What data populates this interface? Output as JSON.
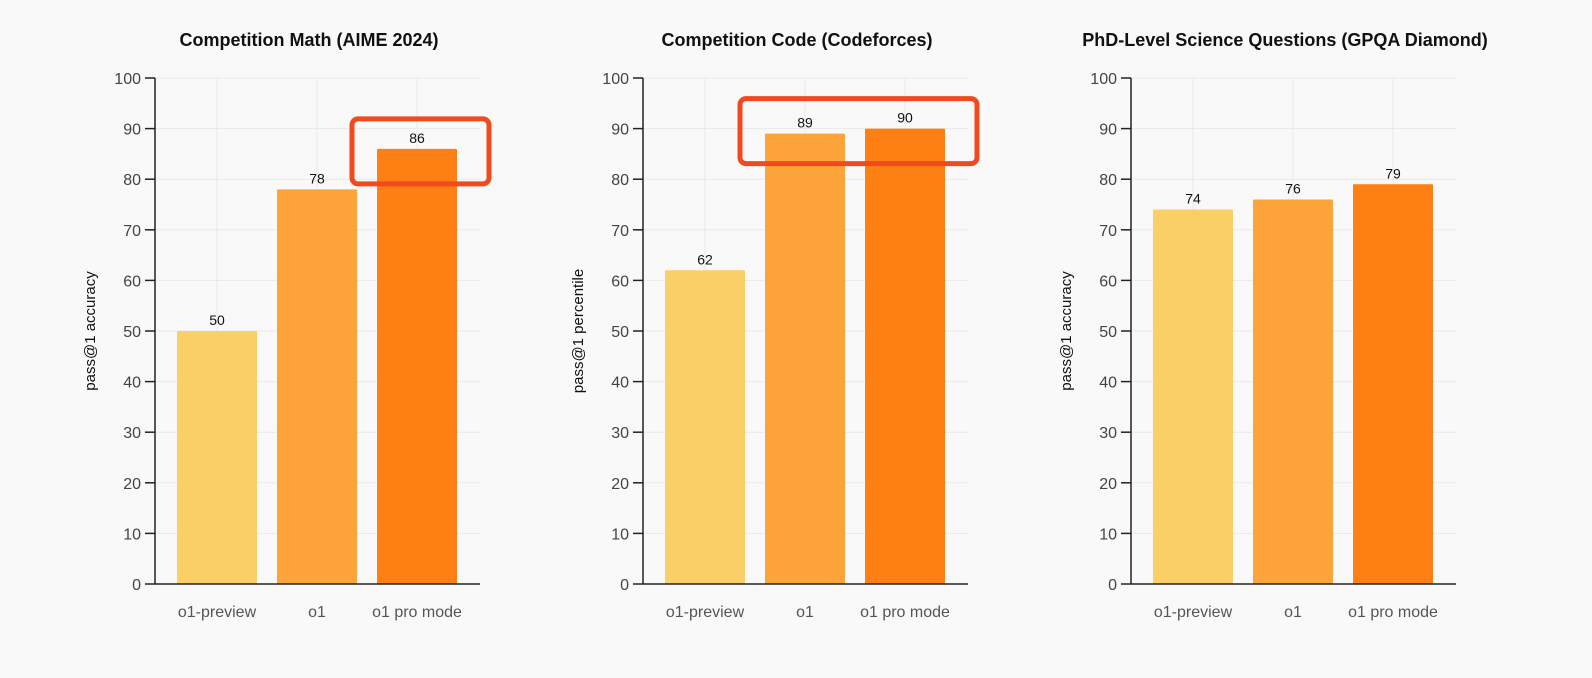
{
  "colors": {
    "background": "#f9f9f9",
    "grid": "#e9e9e9",
    "axis": "#222222",
    "highlight": "#f04a1e",
    "bars": [
      "#fbcf68",
      "#fca43a",
      "#fe7f13"
    ]
  },
  "chart_data": [
    {
      "type": "bar",
      "title": "Competition Math (AIME 2024)",
      "ylabel": "pass@1 accuracy",
      "xlabel": "",
      "categories": [
        "o1-preview",
        "o1",
        "o1 pro mode"
      ],
      "values": [
        50,
        78,
        86
      ],
      "ylim": [
        0,
        100
      ],
      "yticks": [
        0,
        10,
        20,
        30,
        40,
        50,
        60,
        70,
        80,
        90,
        100
      ],
      "grid": true,
      "highlighted": [
        "o1 pro mode"
      ]
    },
    {
      "type": "bar",
      "title": "Competition Code (Codeforces)",
      "ylabel": "pass@1 percentile",
      "xlabel": "",
      "categories": [
        "o1-preview",
        "o1",
        "o1 pro mode"
      ],
      "values": [
        62,
        89,
        90
      ],
      "ylim": [
        0,
        100
      ],
      "yticks": [
        0,
        10,
        20,
        30,
        40,
        50,
        60,
        70,
        80,
        90,
        100
      ],
      "grid": true,
      "highlighted": [
        "o1",
        "o1 pro mode"
      ]
    },
    {
      "type": "bar",
      "title": "PhD-Level Science Questions (GPQA Diamond)",
      "ylabel": "pass@1 accuracy",
      "xlabel": "",
      "categories": [
        "o1-preview",
        "o1",
        "o1 pro mode"
      ],
      "values": [
        74,
        76,
        79
      ],
      "ylim": [
        0,
        100
      ],
      "yticks": [
        0,
        10,
        20,
        30,
        40,
        50,
        60,
        70,
        80,
        90,
        100
      ],
      "grid": true,
      "highlighted": []
    }
  ]
}
